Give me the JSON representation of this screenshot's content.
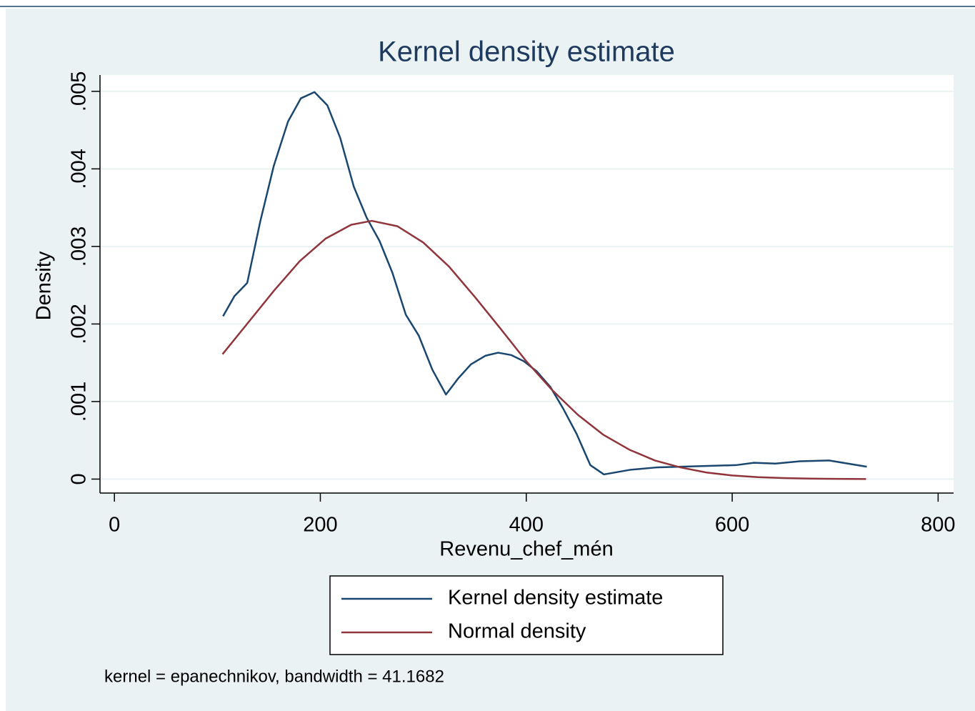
{
  "chart_data": {
    "type": "line",
    "title": "Kernel density estimate",
    "xlabel": "Revenu_chef_mén",
    "ylabel": "Density",
    "note": "kernel = epanechnikov, bandwidth = 41.1682",
    "series": [
      {
        "name": "Kernel density estimate",
        "color": "#1a476f",
        "x": [
          105.5,
          116.6,
          129,
          141.6,
          154.8,
          168.6,
          181.1,
          194.3,
          206.8,
          219.3,
          232.5,
          245,
          257.5,
          270,
          283,
          295.6,
          308.8,
          322,
          334,
          346.3,
          360.2,
          372.7,
          385.2,
          397.6,
          410.1,
          423.3,
          435.8,
          449,
          462.2,
          475.4,
          501,
          526,
          576.7,
          603.7,
          621,
          642,
          666,
          694,
          730.7
        ],
        "values": [
          0.0021,
          0.00236,
          0.00253,
          0.00332,
          0.00404,
          0.00461,
          0.00491,
          0.00499,
          0.00482,
          0.0044,
          0.00377,
          0.00337,
          0.00307,
          0.00266,
          0.00212,
          0.00185,
          0.00141,
          0.00109,
          0.0013,
          0.00148,
          0.00159,
          0.00163,
          0.0016,
          0.00152,
          0.00139,
          0.00119,
          0.00091,
          0.00058,
          0.00018,
          6e-05,
          0.00012,
          0.00015,
          0.00017,
          0.00018,
          0.00021,
          0.0002,
          0.00023,
          0.00024,
          0.00016
        ]
      },
      {
        "name": "Normal density",
        "color": "#90353b",
        "x": [
          105,
          130,
          155,
          180,
          205,
          230,
          250,
          275,
          300,
          325,
          350,
          375,
          400,
          425,
          450,
          475,
          500,
          525,
          550,
          575,
          600,
          625,
          650,
          675,
          700,
          730
        ],
        "values": [
          0.00161,
          0.00202,
          0.00243,
          0.00281,
          0.0031,
          0.00328,
          0.00333,
          0.00326,
          0.00305,
          0.00274,
          0.00235,
          0.00194,
          0.00152,
          0.00115,
          0.00083,
          0.00057,
          0.00038,
          0.00024,
          0.00015,
          8.5e-05,
          4.7e-05,
          2.5e-05,
          1.3e-05,
          6.3e-06,
          2.9e-06,
          1.1e-06
        ]
      }
    ],
    "xlim": [
      -14,
      815
    ],
    "ylim": [
      -0.00018,
      0.00521
    ],
    "xticks": [
      0,
      200,
      400,
      600,
      800
    ],
    "yticks": [
      0,
      {
        "value": 0.001,
        "label": ".001"
      },
      {
        "value": 0.002,
        "label": ".002"
      },
      {
        "value": 0.003,
        "label": ".003"
      },
      {
        "value": 0.004,
        "label": ".004"
      },
      {
        "value": 0.005,
        "label": ".005"
      }
    ],
    "grid": true
  }
}
